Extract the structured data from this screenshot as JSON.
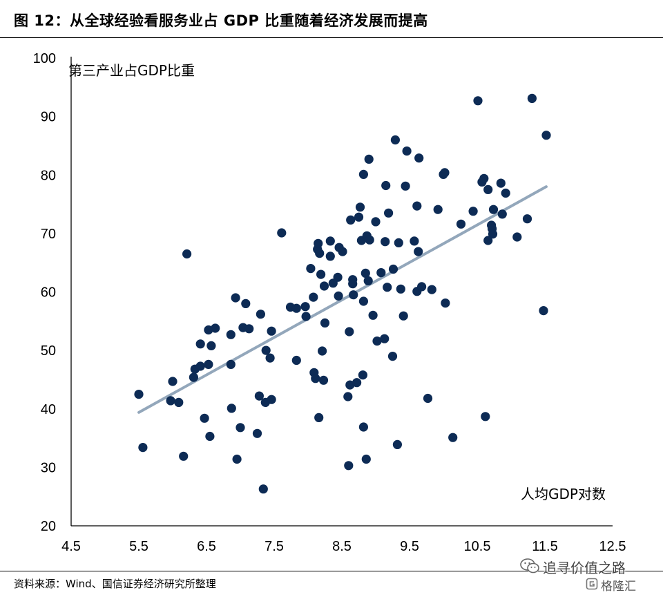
{
  "figure": {
    "title": "图  12：从全球经验看服务业占 GDP 比重随着经济发展而提高",
    "source": "资料来源：Wind、国信证券经济研究所整理"
  },
  "watermark": {
    "main": "追寻价值之路",
    "sub": "格隆汇",
    "icons": [
      "wechat-icon",
      "gelonghui-logo-icon"
    ]
  },
  "chart_data": {
    "type": "scatter",
    "title": "",
    "xlabel": "人均GDP对数",
    "ylabel": "第三产业占GDP比重",
    "xlim": [
      4.5,
      12.5
    ],
    "ylim": [
      20,
      100
    ],
    "xticks": [
      "4.5",
      "5.5",
      "6.5",
      "7.5",
      "8.5",
      "9.5",
      "10.5",
      "11.5",
      "12.5"
    ],
    "yticks": [
      "20",
      "30",
      "40",
      "50",
      "60",
      "70",
      "80",
      "90",
      "100"
    ],
    "grid": false,
    "colors": {
      "points": "#0d2b55",
      "trend": "#93a7bb"
    },
    "trendline": {
      "x": [
        5.5,
        11.52
      ],
      "y": [
        39.4,
        78.0
      ]
    },
    "series": [
      {
        "points": [
          [
            5.5,
            42.5
          ],
          [
            5.56,
            33.4
          ],
          [
            5.97,
            41.4
          ],
          [
            6.0,
            44.7
          ],
          [
            6.09,
            41.1
          ],
          [
            6.16,
            31.9
          ],
          [
            6.21,
            66.5
          ],
          [
            6.31,
            45.4
          ],
          [
            6.33,
            46.8
          ],
          [
            6.41,
            47.3
          ],
          [
            6.41,
            51.1
          ],
          [
            6.47,
            38.4
          ],
          [
            6.53,
            47.6
          ],
          [
            6.53,
            53.5
          ],
          [
            6.55,
            35.3
          ],
          [
            6.57,
            50.8
          ],
          [
            6.63,
            53.8
          ],
          [
            6.86,
            47.6
          ],
          [
            6.86,
            52.7
          ],
          [
            6.87,
            40.1
          ],
          [
            6.93,
            59.0
          ],
          [
            6.95,
            31.4
          ],
          [
            7.0,
            36.8
          ],
          [
            7.04,
            53.9
          ],
          [
            7.08,
            58.0
          ],
          [
            7.13,
            53.7
          ],
          [
            7.25,
            35.8
          ],
          [
            7.28,
            42.2
          ],
          [
            7.3,
            56.2
          ],
          [
            7.34,
            26.3
          ],
          [
            7.37,
            41.1
          ],
          [
            7.38,
            50.0
          ],
          [
            7.44,
            48.7
          ],
          [
            7.46,
            53.3
          ],
          [
            7.46,
            41.6
          ],
          [
            7.61,
            70.1
          ],
          [
            7.74,
            57.4
          ],
          [
            7.83,
            48.3
          ],
          [
            7.83,
            57.2
          ],
          [
            7.96,
            57.5
          ],
          [
            7.97,
            55.8
          ],
          [
            8.04,
            64.0
          ],
          [
            8.08,
            59.1
          ],
          [
            8.09,
            46.2
          ],
          [
            8.11,
            45.2
          ],
          [
            8.14,
            67.3
          ],
          [
            8.15,
            68.3
          ],
          [
            8.16,
            38.5
          ],
          [
            8.17,
            66.6
          ],
          [
            8.19,
            63.0
          ],
          [
            8.21,
            49.9
          ],
          [
            8.23,
            44.9
          ],
          [
            8.24,
            61.0
          ],
          [
            8.25,
            54.7
          ],
          [
            8.33,
            68.7
          ],
          [
            8.33,
            66.1
          ],
          [
            8.37,
            61.5
          ],
          [
            8.44,
            62.5
          ],
          [
            8.45,
            59.3
          ],
          [
            8.46,
            67.6
          ],
          [
            8.51,
            66.9
          ],
          [
            8.59,
            42.1
          ],
          [
            8.6,
            30.3
          ],
          [
            8.61,
            53.2
          ],
          [
            8.62,
            44.1
          ],
          [
            8.63,
            72.3
          ],
          [
            8.66,
            62.1
          ],
          [
            8.66,
            61.4
          ],
          [
            8.67,
            59.5
          ],
          [
            8.72,
            44.5
          ],
          [
            8.75,
            72.8
          ],
          [
            8.77,
            74.5
          ],
          [
            8.79,
            68.8
          ],
          [
            8.81,
            45.8
          ],
          [
            8.82,
            36.9
          ],
          [
            8.82,
            58.4
          ],
          [
            8.82,
            80.1
          ],
          [
            8.85,
            63.2
          ],
          [
            8.86,
            31.4
          ],
          [
            8.87,
            69.6
          ],
          [
            8.89,
            61.9
          ],
          [
            8.9,
            82.7
          ],
          [
            8.91,
            68.9
          ],
          [
            8.96,
            56.0
          ],
          [
            9.0,
            72.0
          ],
          [
            9.02,
            51.6
          ],
          [
            9.08,
            63.3
          ],
          [
            9.13,
            52.0
          ],
          [
            9.14,
            68.6
          ],
          [
            9.15,
            78.2
          ],
          [
            9.17,
            60.8
          ],
          [
            9.19,
            73.5
          ],
          [
            9.25,
            49.0
          ],
          [
            9.26,
            63.9
          ],
          [
            9.29,
            86.0
          ],
          [
            9.32,
            33.9
          ],
          [
            9.34,
            68.4
          ],
          [
            9.37,
            60.5
          ],
          [
            9.41,
            55.9
          ],
          [
            9.44,
            78.1
          ],
          [
            9.46,
            84.1
          ],
          [
            9.57,
            68.7
          ],
          [
            9.61,
            60.1
          ],
          [
            9.61,
            74.7
          ],
          [
            9.63,
            66.9
          ],
          [
            9.64,
            82.9
          ],
          [
            9.68,
            60.9
          ],
          [
            9.77,
            41.8
          ],
          [
            9.83,
            60.4
          ],
          [
            9.92,
            74.1
          ],
          [
            10.0,
            80.1
          ],
          [
            10.02,
            80.4
          ],
          [
            10.03,
            58.1
          ],
          [
            10.14,
            35.1
          ],
          [
            10.26,
            71.6
          ],
          [
            10.44,
            73.8
          ],
          [
            10.51,
            92.7
          ],
          [
            10.57,
            78.8
          ],
          [
            10.6,
            79.4
          ],
          [
            10.62,
            38.7
          ],
          [
            10.66,
            68.8
          ],
          [
            10.66,
            77.5
          ],
          [
            10.71,
            71.4
          ],
          [
            10.72,
            70.8
          ],
          [
            10.73,
            69.9
          ],
          [
            10.74,
            74.1
          ],
          [
            10.85,
            78.6
          ],
          [
            10.87,
            73.3
          ],
          [
            10.92,
            76.9
          ],
          [
            11.09,
            69.4
          ],
          [
            11.24,
            72.5
          ],
          [
            11.31,
            93.1
          ],
          [
            11.48,
            56.8
          ],
          [
            11.52,
            86.8
          ]
        ]
      }
    ]
  }
}
